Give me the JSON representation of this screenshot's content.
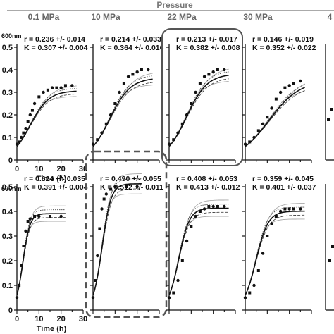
{
  "header": {
    "title": "Pressure",
    "pressures": [
      "0.1 MPa",
      "10 MPa",
      "22 MPa",
      "30 MPa",
      "4"
    ]
  },
  "axis": {
    "ylabel_top_fragment": "600nm",
    "ylabel_bottom_fragment": "600nm",
    "xlabel": "Time (h)",
    "yticks": [
      "0",
      "0.1",
      "0.2",
      "0.3",
      "0.4",
      "0.5"
    ],
    "xticks": [
      "0",
      "10",
      "20",
      "30"
    ],
    "yrange": [
      0,
      0.5
    ],
    "xrange": [
      0,
      30
    ]
  },
  "chart_data": [
    {
      "type": "line",
      "row": "top",
      "pressure": "0.1 MPa",
      "x": [
        0,
        1,
        2,
        3,
        4,
        5,
        6,
        7,
        8,
        10,
        12,
        14,
        16,
        18,
        20,
        22,
        25
      ],
      "mean_curve": {
        "r": 0.236,
        "K": 0.307
      },
      "y_points": [
        0.07,
        0.08,
        0.1,
        0.12,
        0.14,
        0.17,
        0.2,
        0.22,
        0.25,
        0.28,
        0.3,
        0.31,
        0.32,
        0.32,
        0.32,
        0.33,
        0.33
      ],
      "annotation_r": "r = 0.236 +/- 0.014",
      "annotation_K": "K = 0.307 +/- 0.004",
      "highlight": "none"
    },
    {
      "type": "line",
      "row": "top",
      "pressure": "10 MPa",
      "x": [
        0,
        2,
        4,
        6,
        8,
        10,
        12,
        14,
        16,
        18,
        20,
        22,
        25
      ],
      "mean_curve": {
        "r": 0.214,
        "K": 0.364
      },
      "y_points": [
        0.07,
        0.09,
        0.12,
        0.16,
        0.2,
        0.25,
        0.3,
        0.34,
        0.37,
        0.38,
        0.39,
        0.4,
        0.4
      ],
      "annotation_r": "r = 0.214 +/- 0.033",
      "annotation_K": "K = 0.364 +/- 0.016",
      "highlight": "none"
    },
    {
      "type": "line",
      "row": "top",
      "pressure": "22 MPa",
      "x": [
        0,
        2,
        4,
        6,
        8,
        10,
        12,
        14,
        16,
        18,
        20,
        22,
        25
      ],
      "mean_curve": {
        "r": 0.213,
        "K": 0.382
      },
      "y_points": [
        0.07,
        0.09,
        0.12,
        0.16,
        0.2,
        0.25,
        0.3,
        0.34,
        0.37,
        0.38,
        0.39,
        0.4,
        0.4
      ],
      "annotation_r": "r = 0.213 +/- 0.017",
      "annotation_K": "K = 0.382 +/- 0.008",
      "highlight": "solid-rounded-box"
    },
    {
      "type": "line",
      "row": "top",
      "pressure": "30 MPa",
      "x": [
        0,
        2,
        4,
        6,
        8,
        10,
        12,
        14,
        16,
        18,
        20,
        22,
        25
      ],
      "mean_curve": {
        "r": 0.146,
        "K": 0.352
      },
      "y_points": [
        0.07,
        0.08,
        0.1,
        0.13,
        0.16,
        0.19,
        0.23,
        0.27,
        0.3,
        0.32,
        0.33,
        0.34,
        0.35
      ],
      "annotation_r": "r = 0.146 +/- 0.019",
      "annotation_K": "K = 0.352 +/- 0.022",
      "highlight": "none"
    },
    {
      "type": "line",
      "row": "bottom",
      "pressure": "0.1 MPa",
      "x": [
        0,
        1,
        2,
        3,
        4,
        5,
        6,
        8,
        10,
        15,
        20
      ],
      "mean_curve": {
        "r": 0.624,
        "K": 0.391
      },
      "y_points": [
        0.05,
        0.1,
        0.18,
        0.26,
        0.32,
        0.36,
        0.37,
        0.38,
        0.38,
        0.38,
        0.38
      ],
      "annotation_r": "r = 0.624 +/- 0.035",
      "annotation_K": "K = 0.391 +/- 0.004",
      "highlight": "none"
    },
    {
      "type": "line",
      "row": "bottom",
      "pressure": "10 MPa",
      "x": [
        0,
        1,
        2,
        3,
        4,
        5,
        6,
        8,
        10,
        15,
        20
      ],
      "mean_curve": {
        "r": 0.49,
        "K": 0.512
      },
      "y_points": [
        0.05,
        0.12,
        0.22,
        0.33,
        0.41,
        0.45,
        0.47,
        0.49,
        0.5,
        0.5,
        0.5
      ],
      "annotation_r": "r = 0.490 +/- 0.055",
      "annotation_K": "K = 0.512 +/- 0.011",
      "highlight": "dashed-rounded-box"
    },
    {
      "type": "line",
      "row": "bottom",
      "pressure": "22 MPa",
      "x": [
        0,
        2,
        4,
        6,
        8,
        10,
        12,
        14,
        16,
        18,
        20,
        22,
        25
      ],
      "mean_curve": {
        "r": 0.408,
        "K": 0.413
      },
      "y_points": [
        0.05,
        0.07,
        0.12,
        0.2,
        0.28,
        0.34,
        0.38,
        0.4,
        0.41,
        0.42,
        0.42,
        0.42,
        0.42
      ],
      "annotation_r": "r = 0.408 +/- 0.053",
      "annotation_K": "K = 0.413 +/- 0.012",
      "highlight": "none"
    },
    {
      "type": "line",
      "row": "bottom",
      "pressure": "30 MPa",
      "x": [
        0,
        2,
        4,
        6,
        8,
        10,
        12,
        14,
        16,
        18,
        20,
        22,
        25
      ],
      "mean_curve": {
        "r": 0.359,
        "K": 0.401
      },
      "y_points": [
        0.05,
        0.07,
        0.1,
        0.16,
        0.23,
        0.3,
        0.35,
        0.38,
        0.4,
        0.41,
        0.41,
        0.41,
        0.41
      ],
      "annotation_r": "r = 0.359 +/- 0.045",
      "annotation_K": "K = 0.401 +/- 0.037",
      "highlight": "none"
    }
  ]
}
